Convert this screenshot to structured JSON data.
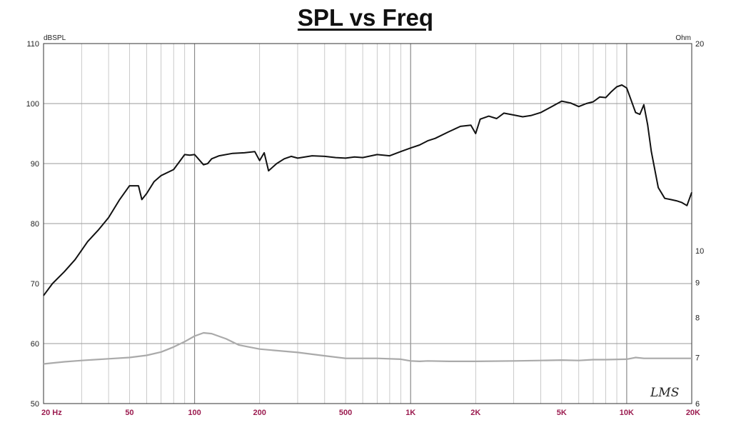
{
  "chart_data": {
    "type": "line",
    "title": "SPL vs Freq",
    "left_unit": "dBSPL",
    "right_unit": "Ohm",
    "x_scale": "log",
    "xlim": [
      20,
      20000
    ],
    "ylim_left": [
      50,
      110
    ],
    "ylim_right": [
      6,
      20
    ],
    "y_ticks_left": [
      "110",
      "100",
      "90",
      "80",
      "70",
      "60",
      "50"
    ],
    "y_ticks_right": [
      "20",
      "10",
      "9",
      "8",
      "7",
      "6"
    ],
    "x_ticks": [
      "20  Hz",
      "50",
      "100",
      "200",
      "500",
      "1K",
      "2K",
      "5K",
      "10K",
      "20K"
    ],
    "grid": true,
    "watermark": "LMS",
    "series": [
      {
        "axis": "left",
        "color": "#111111",
        "x": [
          20,
          22,
          25,
          28,
          32,
          36,
          40,
          45,
          50,
          55,
          57,
          60,
          65,
          70,
          80,
          90,
          95,
          100,
          110,
          115,
          120,
          130,
          150,
          170,
          190,
          200,
          210,
          220,
          240,
          260,
          280,
          300,
          350,
          400,
          450,
          500,
          550,
          600,
          700,
          800,
          900,
          1000,
          1100,
          1200,
          1300,
          1500,
          1700,
          1900,
          2000,
          2100,
          2300,
          2500,
          2700,
          3000,
          3300,
          3600,
          4000,
          4500,
          5000,
          5500,
          6000,
          6500,
          7000,
          7500,
          8000,
          8500,
          9000,
          9500,
          10000,
          10500,
          11000,
          11500,
          12000,
          12500,
          13000,
          14000,
          15000,
          16000,
          17000,
          18000,
          19000,
          20000
        ],
        "values": [
          68,
          70,
          72,
          74,
          77,
          79,
          81,
          84,
          86.3,
          86.3,
          84,
          85,
          87,
          88,
          89,
          91.5,
          91.4,
          91.5,
          89.8,
          90,
          90.8,
          91.3,
          91.7,
          91.8,
          92,
          90.5,
          91.8,
          88.8,
          90,
          90.8,
          91.2,
          90.9,
          91.3,
          91.2,
          91,
          90.9,
          91.1,
          91,
          91.5,
          91.3,
          92,
          92.6,
          93.1,
          93.8,
          94.2,
          95.3,
          96.2,
          96.4,
          95,
          97.4,
          97.9,
          97.5,
          98.4,
          98.1,
          97.8,
          98,
          98.5,
          99.5,
          100.4,
          100.1,
          99.5,
          100,
          100.3,
          101.1,
          101,
          102,
          102.8,
          103.1,
          102.6,
          100.5,
          98.5,
          98.2,
          99.8,
          96.5,
          92,
          86,
          84.2,
          84,
          83.8,
          83.5,
          83,
          85.2
        ]
      },
      {
        "axis": "right",
        "color": "#aaaaaa",
        "x": [
          20,
          25,
          30,
          40,
          50,
          60,
          70,
          80,
          90,
          100,
          110,
          120,
          140,
          160,
          200,
          300,
          400,
          500,
          700,
          900,
          1000,
          1100,
          1200,
          1500,
          2000,
          3000,
          4000,
          5000,
          6000,
          7000,
          8000,
          10000,
          11000,
          12000,
          15000,
          20000
        ],
        "values": [
          6.85,
          6.9,
          6.93,
          6.97,
          7,
          7.05,
          7.13,
          7.25,
          7.38,
          7.52,
          7.6,
          7.58,
          7.45,
          7.3,
          7.2,
          7.12,
          7.04,
          6.98,
          6.98,
          6.96,
          6.92,
          6.91,
          6.92,
          6.91,
          6.91,
          6.92,
          6.93,
          6.94,
          6.93,
          6.95,
          6.95,
          6.96,
          7,
          6.98,
          6.98,
          6.98
        ]
      }
    ]
  }
}
